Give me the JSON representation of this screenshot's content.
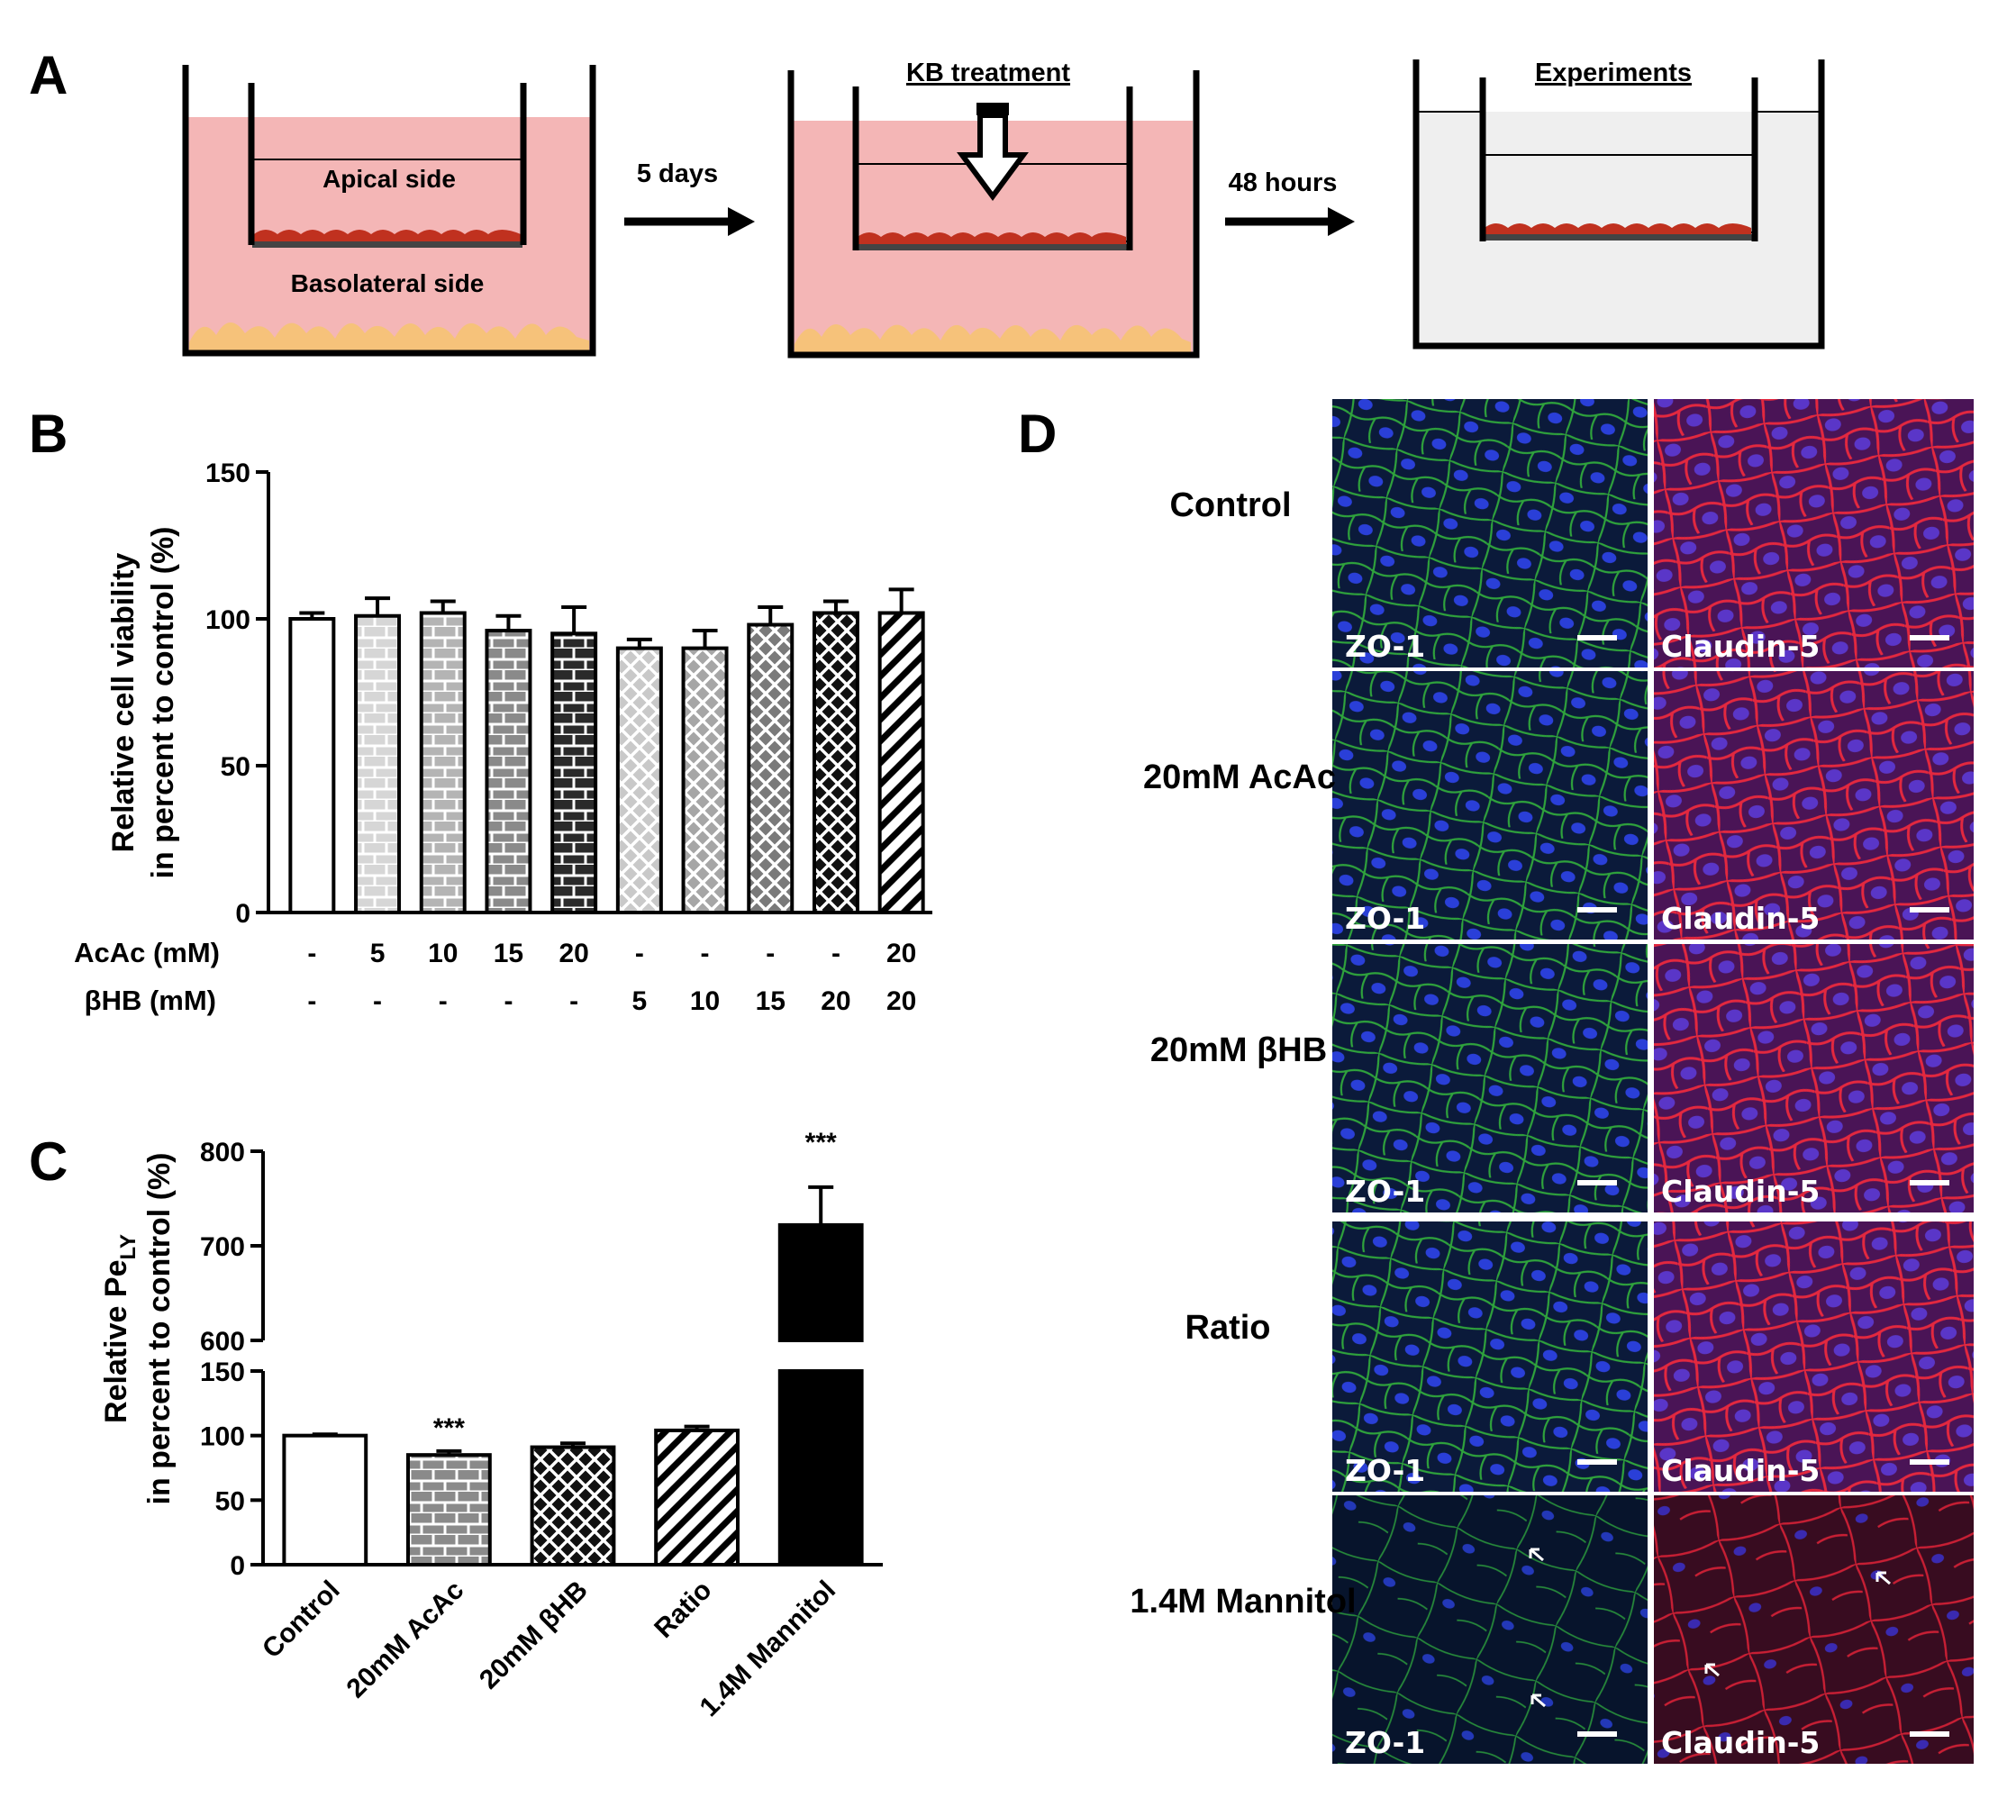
{
  "panels": {
    "a": {
      "letter": "A"
    },
    "b": {
      "letter": "B"
    },
    "c": {
      "letter": "C"
    },
    "d": {
      "letter": "D"
    }
  },
  "schematic": {
    "apical": "Apical side",
    "basolateral": "Basolateral side",
    "step1_label": "5 days",
    "step2_title": "KB treatment",
    "step3_label": "48 hours",
    "step4_title": "Experiments",
    "colors": {
      "medium": "#f4b6b6",
      "empty_medium": "#efefef",
      "cells": "#c0311f",
      "astrocytes": "#f6c27a"
    }
  },
  "chart_data": [
    {
      "type": "bar",
      "panel": "B",
      "ylabel_line1": "Relative cell viability",
      "ylabel_line2": "in percent to control (%)",
      "ylim": [
        0,
        150
      ],
      "yticks": [
        0,
        50,
        100,
        150
      ],
      "row_labels": [
        "AcAc (mM)",
        "βHB (mM)"
      ],
      "categories_acac": [
        "-",
        "5",
        "10",
        "15",
        "20",
        "-",
        "-",
        "-",
        "-",
        "20"
      ],
      "categories_bhb": [
        "-",
        "-",
        "-",
        "-",
        "-",
        "5",
        "10",
        "15",
        "20",
        "20"
      ],
      "values": [
        100,
        101,
        102,
        96,
        95,
        90,
        90,
        98,
        102,
        102
      ],
      "errors": [
        2,
        6,
        4,
        5,
        9,
        3,
        6,
        6,
        4,
        8
      ],
      "patterns": [
        "white",
        "brick-light",
        "brick-mid",
        "brick-dark",
        "brick-black",
        "cross-light",
        "cross-mid",
        "cross-dark",
        "cross-black",
        "diag-black"
      ]
    },
    {
      "type": "bar",
      "panel": "C",
      "ylabel_line1": "Relative Pe",
      "ylabel_sub": "LY",
      "ylabel_line2": "in percent to control (%)",
      "broken_axis": true,
      "lower_ylim": [
        0,
        150
      ],
      "upper_ylim": [
        600,
        800
      ],
      "lower_yticks": [
        0,
        50,
        100,
        150
      ],
      "upper_yticks": [
        600,
        700,
        800
      ],
      "categories": [
        "Control",
        "20mM AcAc",
        "20mM βHB",
        "Ratio",
        "1.4M Mannitol"
      ],
      "values": [
        100,
        85,
        91,
        104,
        722
      ],
      "errors": [
        1,
        3,
        3,
        3,
        40
      ],
      "significance": [
        "",
        "***",
        "",
        "",
        "***"
      ],
      "patterns": [
        "white",
        "brick-dark",
        "cross-black",
        "diag-black",
        "solid"
      ]
    }
  ],
  "microscopy": {
    "rows": [
      "Control",
      "20mM AcAc",
      "20mM βHB",
      "Ratio",
      "1.4M Mannitol"
    ],
    "stain_left": "ZO-1",
    "stain_right": "Claudin-5",
    "colors": {
      "zo1": "#1f8a2e",
      "claudin": "#d4213b",
      "nuclei": "#2a3fd8"
    }
  }
}
